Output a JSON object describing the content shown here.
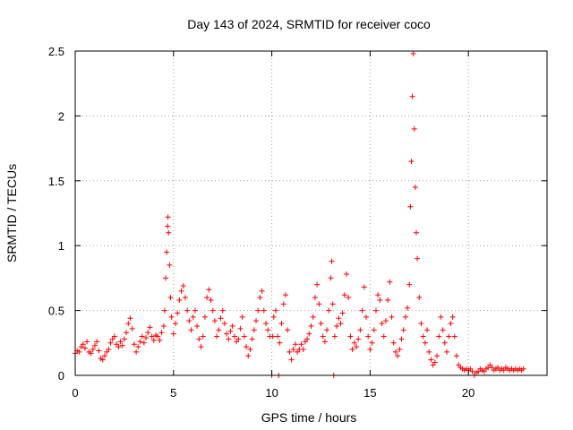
{
  "chart_data": {
    "type": "scatter",
    "title": "Day 143 of 2024, SRMTID for receiver coco",
    "xlabel": "GPS time / hours",
    "ylabel": "SRMTID / TECUs",
    "xlim": [
      0,
      24
    ],
    "ylim": [
      0,
      2.5
    ],
    "xticks": [
      0,
      5,
      10,
      15,
      20
    ],
    "xtick_labels": [
      "0",
      "5",
      "10",
      "15",
      "20"
    ],
    "yticks": [
      0,
      0.5,
      1,
      1.5,
      2,
      2.5
    ],
    "ytick_labels": [
      "0",
      "0.5",
      "1",
      "1.5",
      "2",
      "2.5"
    ],
    "grid": true,
    "marker": "+",
    "color": "#ff0000",
    "series": [
      {
        "name": "SRMTID",
        "points": [
          [
            0.0,
            0.17
          ],
          [
            0.1,
            0.19
          ],
          [
            0.2,
            0.18
          ],
          [
            0.3,
            0.22
          ],
          [
            0.4,
            0.24
          ],
          [
            0.5,
            0.21
          ],
          [
            0.6,
            0.26
          ],
          [
            0.7,
            0.18
          ],
          [
            0.8,
            0.17
          ],
          [
            0.9,
            0.2
          ],
          [
            1.0,
            0.23
          ],
          [
            1.1,
            0.26
          ],
          [
            1.2,
            0.19
          ],
          [
            1.3,
            0.13
          ],
          [
            1.4,
            0.12
          ],
          [
            1.5,
            0.15
          ],
          [
            1.6,
            0.18
          ],
          [
            1.7,
            0.2
          ],
          [
            1.8,
            0.25
          ],
          [
            1.9,
            0.28
          ],
          [
            2.0,
            0.3
          ],
          [
            2.1,
            0.24
          ],
          [
            2.2,
            0.22
          ],
          [
            2.3,
            0.26
          ],
          [
            2.4,
            0.23
          ],
          [
            2.5,
            0.28
          ],
          [
            2.6,
            0.33
          ],
          [
            2.7,
            0.4
          ],
          [
            2.8,
            0.44
          ],
          [
            2.9,
            0.36
          ],
          [
            3.0,
            0.24
          ],
          [
            3.1,
            0.18
          ],
          [
            3.2,
            0.22
          ],
          [
            3.3,
            0.26
          ],
          [
            3.4,
            0.3
          ],
          [
            3.5,
            0.25
          ],
          [
            3.6,
            0.29
          ],
          [
            3.7,
            0.33
          ],
          [
            3.8,
            0.37
          ],
          [
            3.9,
            0.3
          ],
          [
            4.0,
            0.27
          ],
          [
            4.1,
            0.31
          ],
          [
            4.2,
            0.3
          ],
          [
            4.3,
            0.27
          ],
          [
            4.4,
            0.33
          ],
          [
            4.5,
            0.38
          ],
          [
            4.55,
            0.5
          ],
          [
            4.6,
            0.75
          ],
          [
            4.65,
            0.95
          ],
          [
            4.7,
            1.15
          ],
          [
            4.72,
            1.22
          ],
          [
            4.75,
            1.1
          ],
          [
            4.8,
            0.85
          ],
          [
            4.85,
            0.6
          ],
          [
            4.9,
            0.45
          ],
          [
            5.0,
            0.32
          ],
          [
            5.1,
            0.4
          ],
          [
            5.2,
            0.48
          ],
          [
            5.3,
            0.58
          ],
          [
            5.4,
            0.65
          ],
          [
            5.5,
            0.69
          ],
          [
            5.6,
            0.6
          ],
          [
            5.7,
            0.5
          ],
          [
            5.8,
            0.42
          ],
          [
            5.9,
            0.35
          ],
          [
            6.0,
            0.45
          ],
          [
            6.1,
            0.5
          ],
          [
            6.2,
            0.38
          ],
          [
            6.3,
            0.28
          ],
          [
            6.4,
            0.22
          ],
          [
            6.5,
            0.3
          ],
          [
            6.6,
            0.45
          ],
          [
            6.7,
            0.6
          ],
          [
            6.8,
            0.66
          ],
          [
            6.9,
            0.58
          ],
          [
            7.0,
            0.5
          ],
          [
            7.1,
            0.42
          ],
          [
            7.2,
            0.3
          ],
          [
            7.3,
            0.35
          ],
          [
            7.4,
            0.44
          ],
          [
            7.5,
            0.5
          ],
          [
            7.6,
            0.4
          ],
          [
            7.7,
            0.32
          ],
          [
            7.8,
            0.28
          ],
          [
            7.9,
            0.34
          ],
          [
            8.0,
            0.38
          ],
          [
            8.1,
            0.3
          ],
          [
            8.2,
            0.26
          ],
          [
            8.3,
            0.28
          ],
          [
            8.4,
            0.36
          ],
          [
            8.5,
            0.45
          ],
          [
            8.6,
            0.3
          ],
          [
            8.7,
            0.22
          ],
          [
            8.8,
            0.15
          ],
          [
            8.9,
            0.2
          ],
          [
            9.0,
            0.28
          ],
          [
            9.1,
            0.35
          ],
          [
            9.2,
            0.42
          ],
          [
            9.3,
            0.5
          ],
          [
            9.4,
            0.6
          ],
          [
            9.5,
            0.65
          ],
          [
            9.6,
            0.5
          ],
          [
            9.7,
            0.4
          ],
          [
            9.8,
            0.35
          ],
          [
            9.9,
            0.3
          ],
          [
            10.0,
            0.0
          ],
          [
            10.05,
            0.3
          ],
          [
            10.1,
            0.45
          ],
          [
            10.2,
            0.5
          ],
          [
            10.3,
            0.3
          ],
          [
            10.35,
            0.0
          ],
          [
            10.4,
            0.25
          ],
          [
            10.5,
            0.4
          ],
          [
            10.6,
            0.55
          ],
          [
            10.7,
            0.62
          ],
          [
            10.8,
            0.35
          ],
          [
            10.9,
            0.18
          ],
          [
            11.0,
            0.12
          ],
          [
            11.1,
            0.2
          ],
          [
            11.2,
            0.24
          ],
          [
            11.3,
            0.18
          ],
          [
            11.4,
            0.2
          ],
          [
            11.5,
            0.24
          ],
          [
            11.6,
            0.2
          ],
          [
            11.7,
            0.26
          ],
          [
            11.8,
            0.28
          ],
          [
            11.9,
            0.32
          ],
          [
            12.0,
            0.38
          ],
          [
            12.1,
            0.45
          ],
          [
            12.2,
            0.6
          ],
          [
            12.3,
            0.7
          ],
          [
            12.4,
            0.55
          ],
          [
            12.5,
            0.4
          ],
          [
            12.6,
            0.3
          ],
          [
            12.7,
            0.26
          ],
          [
            12.8,
            0.35
          ],
          [
            12.9,
            0.5
          ],
          [
            13.0,
            0.75
          ],
          [
            13.05,
            0.88
          ],
          [
            13.1,
            0.55
          ],
          [
            13.15,
            0.0
          ],
          [
            13.2,
            0.3
          ],
          [
            13.3,
            0.38
          ],
          [
            13.4,
            0.44
          ],
          [
            13.5,
            0.4
          ],
          [
            13.6,
            0.48
          ],
          [
            13.7,
            0.62
          ],
          [
            13.8,
            0.78
          ],
          [
            13.9,
            0.6
          ],
          [
            14.0,
            0.3
          ],
          [
            14.1,
            0.2
          ],
          [
            14.2,
            0.25
          ],
          [
            14.3,
            0.22
          ],
          [
            14.4,
            0.28
          ],
          [
            14.5,
            0.35
          ],
          [
            14.6,
            0.5
          ],
          [
            14.7,
            0.68
          ],
          [
            14.8,
            0.45
          ],
          [
            14.9,
            0.3
          ],
          [
            15.0,
            0.2
          ],
          [
            15.1,
            0.25
          ],
          [
            15.2,
            0.35
          ],
          [
            15.3,
            0.5
          ],
          [
            15.4,
            0.62
          ],
          [
            15.5,
            0.58
          ],
          [
            15.6,
            0.4
          ],
          [
            15.7,
            0.3
          ],
          [
            15.8,
            0.42
          ],
          [
            15.9,
            0.58
          ],
          [
            16.0,
            0.72
          ],
          [
            16.1,
            0.45
          ],
          [
            16.2,
            0.25
          ],
          [
            16.3,
            0.18
          ],
          [
            16.4,
            0.15
          ],
          [
            16.5,
            0.2
          ],
          [
            16.6,
            0.28
          ],
          [
            16.7,
            0.35
          ],
          [
            16.8,
            0.45
          ],
          [
            16.9,
            0.52
          ],
          [
            17.0,
            0.7
          ],
          [
            17.05,
            1.3
          ],
          [
            17.1,
            1.65
          ],
          [
            17.15,
            2.15
          ],
          [
            17.2,
            2.48
          ],
          [
            17.25,
            1.9
          ],
          [
            17.3,
            1.45
          ],
          [
            17.35,
            1.1
          ],
          [
            17.4,
            0.9
          ],
          [
            17.5,
            0.6
          ],
          [
            17.6,
            0.4
          ],
          [
            17.7,
            0.3
          ],
          [
            17.8,
            0.25
          ],
          [
            17.9,
            0.35
          ],
          [
            18.0,
            0.18
          ],
          [
            18.1,
            0.12
          ],
          [
            18.2,
            0.08
          ],
          [
            18.3,
            0.1
          ],
          [
            18.4,
            0.15
          ],
          [
            18.5,
            0.3
          ],
          [
            18.6,
            0.45
          ],
          [
            18.7,
            0.35
          ],
          [
            18.8,
            0.25
          ],
          [
            18.9,
            0.18
          ],
          [
            19.0,
            0.3
          ],
          [
            19.1,
            0.4
          ],
          [
            19.2,
            0.45
          ],
          [
            19.3,
            0.3
          ],
          [
            19.4,
            0.15
          ],
          [
            19.5,
            0.08
          ],
          [
            19.6,
            0.06
          ],
          [
            19.7,
            0.05
          ],
          [
            19.8,
            0.04
          ],
          [
            19.9,
            0.05
          ],
          [
            20.0,
            0.04
          ],
          [
            20.1,
            0.05
          ],
          [
            20.2,
            0.03
          ],
          [
            20.3,
            0.0
          ],
          [
            20.4,
            0.02
          ],
          [
            20.5,
            0.03
          ],
          [
            20.6,
            0.05
          ],
          [
            20.7,
            0.04
          ],
          [
            20.8,
            0.03
          ],
          [
            20.9,
            0.05
          ],
          [
            21.0,
            0.06
          ],
          [
            21.1,
            0.08
          ],
          [
            21.2,
            0.06
          ],
          [
            21.3,
            0.04
          ],
          [
            21.4,
            0.05
          ],
          [
            21.5,
            0.06
          ],
          [
            21.6,
            0.04
          ],
          [
            21.7,
            0.05
          ],
          [
            21.8,
            0.04
          ],
          [
            21.9,
            0.06
          ],
          [
            22.0,
            0.05
          ],
          [
            22.1,
            0.04
          ],
          [
            22.2,
            0.05
          ],
          [
            22.3,
            0.04
          ],
          [
            22.4,
            0.05
          ],
          [
            22.5,
            0.04
          ],
          [
            22.6,
            0.05
          ],
          [
            22.7,
            0.04
          ],
          [
            22.8,
            0.05
          ]
        ]
      }
    ]
  }
}
